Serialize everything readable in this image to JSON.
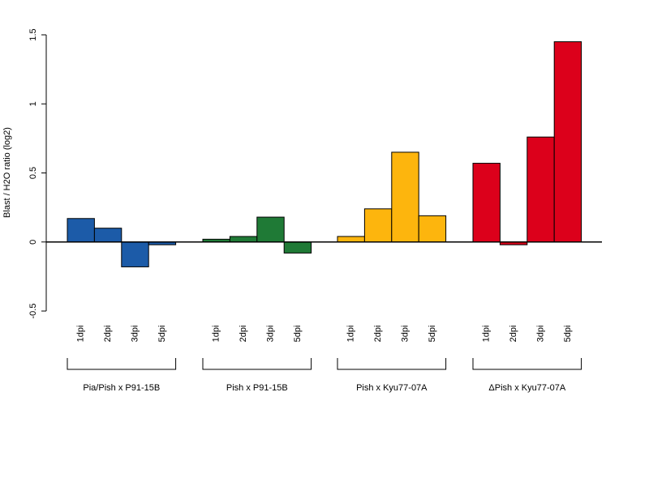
{
  "chart_data": {
    "type": "bar",
    "title": "",
    "xlabel": "",
    "ylabel": "Blast / H2O ratio (log2)",
    "ylim": [
      -0.5,
      1.5
    ],
    "yticks": [
      "-0.5",
      "0",
      "0.5",
      "1",
      "1.5"
    ],
    "yticks_values": [
      -0.5,
      0,
      0.5,
      1,
      1.5
    ],
    "grid": false,
    "legend": "none",
    "categories": [
      "1dpi",
      "2dpi",
      "3dpi",
      "5dpi"
    ],
    "groups": [
      {
        "label": "Pia/Pish x P91-15B",
        "color": "#1c5ba8",
        "values": [
          0.17,
          0.1,
          -0.18,
          -0.02
        ]
      },
      {
        "label": "Pish x P91-15B",
        "color": "#1f7a36",
        "values": [
          0.02,
          0.04,
          0.18,
          -0.08
        ]
      },
      {
        "label": "Pish x Kyu77-07A",
        "color": "#fdb50d",
        "values": [
          0.04,
          0.24,
          0.65,
          0.19
        ]
      },
      {
        "label": "ΔPish x Kyu77-07A",
        "color": "#dc001b",
        "values": [
          0.57,
          -0.02,
          0.76,
          1.45
        ]
      }
    ]
  }
}
